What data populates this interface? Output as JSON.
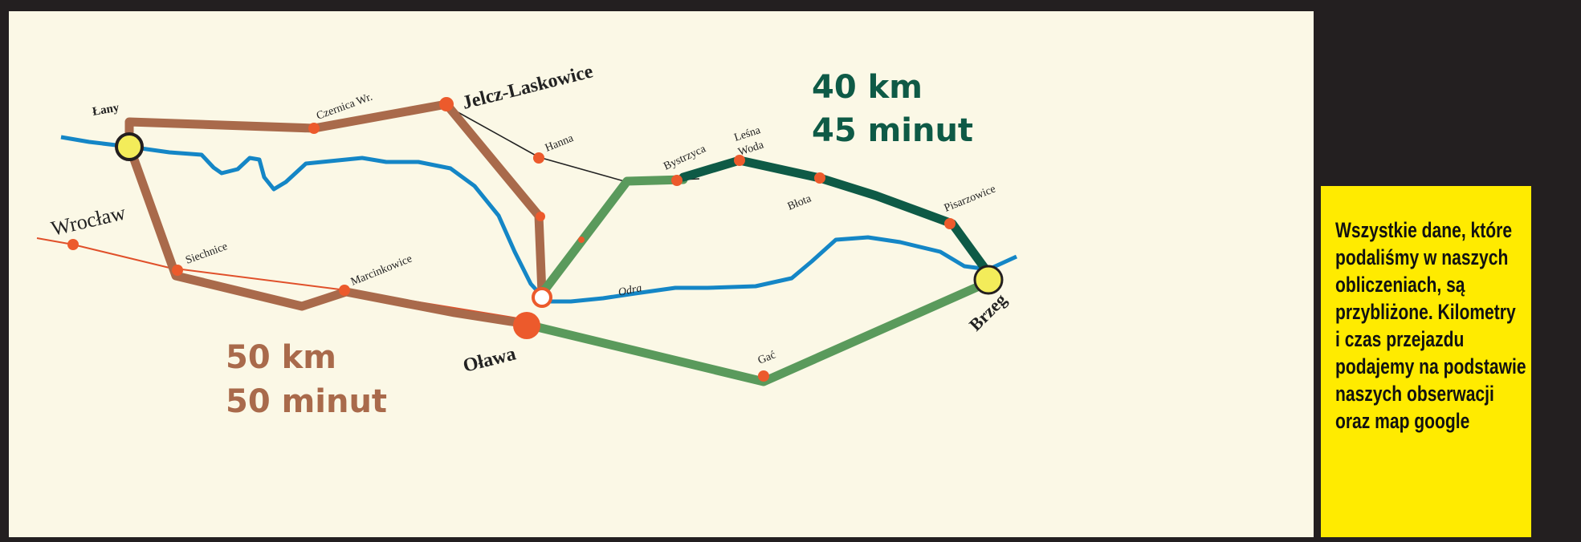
{
  "colors": {
    "page_bg": "#231f20",
    "map_bg": "#fbf8e6",
    "route_green": "#0e5a46",
    "route_green_light": "#5a9a5c",
    "route_brown": "#a96a4b",
    "river": "#1486c6",
    "road": "#e0502a",
    "town_dot": "#ec5a2c",
    "highlight_town": "#f3ec5a",
    "note_bg": "#ffeb00"
  },
  "routes": {
    "green": {
      "distance": "40 km",
      "time": "45 minut"
    },
    "brown": {
      "distance": "50 km",
      "time": "50 minut"
    }
  },
  "places": {
    "lany": "Łany",
    "wroclaw": "Wrocław",
    "siechnice": "Siechnice",
    "marcinkowice": "Marcinkowice",
    "czernica": "Czernica Wr.",
    "jelcz": "Jelcz-Laskowice",
    "hanna": "Hanna",
    "olawa": "Oława",
    "bystrzyca": "Bystrzyca",
    "lesna_woda_1": "Leśna",
    "lesna_woda_2": "Woda",
    "blota": "Błota",
    "pisarzowice": "Pisarzowice",
    "gac": "Gać",
    "brzeg": "Brzeg",
    "odra": "Odra"
  },
  "note": {
    "lines": [
      "Wszystkie dane, które",
      "podaliśmy w naszych",
      "obliczeniach, są",
      "przybliżone. Kilometry",
      "i czas przejazdu",
      "podajemy na podstawie",
      "naszych obserwacji",
      "oraz map google"
    ]
  }
}
